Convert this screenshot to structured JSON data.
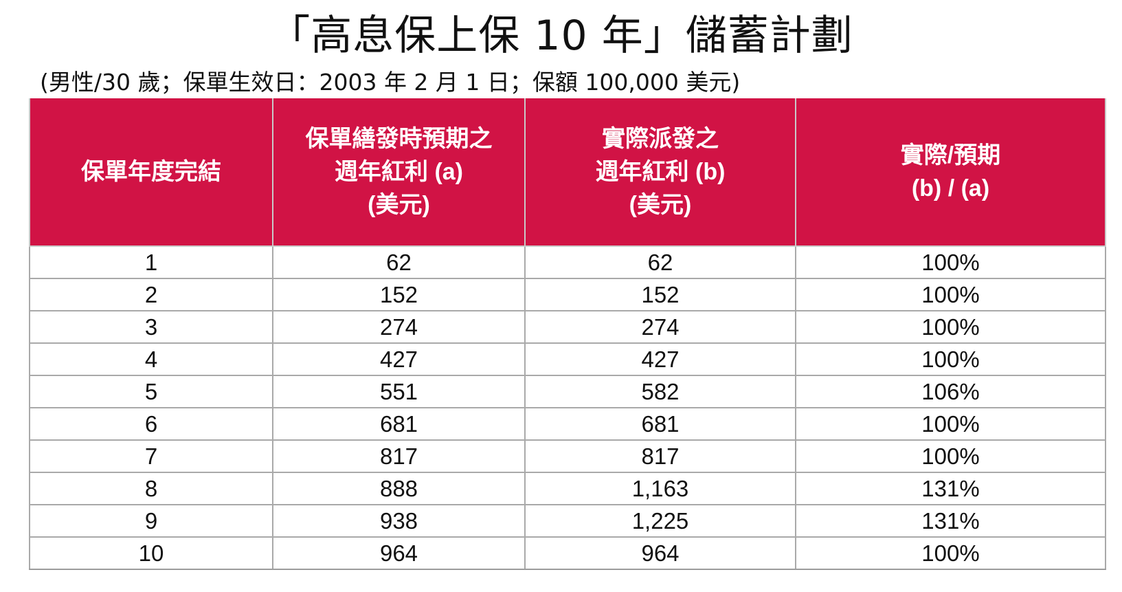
{
  "title": "「高息保上保 10 年」儲蓄計劃",
  "subtitle": "(男性/30 歲；保單生效日：2003 年 2 月 1 日；保額 100,000 美元)",
  "colors": {
    "header_bg": "#d11345",
    "header_text": "#ffffff",
    "grid": "#a9a9a9"
  },
  "table": {
    "headers": [
      [
        "保單年度完結"
      ],
      [
        "保單繕發時預期之",
        "週年紅利 (a)",
        "(美元)"
      ],
      [
        "實際派發之",
        "週年紅利 (b)",
        "(美元)"
      ],
      [
        "實際/預期",
        "(b) / (a)"
      ]
    ],
    "rows": [
      [
        "1",
        "62",
        "62",
        "100%"
      ],
      [
        "2",
        "152",
        "152",
        "100%"
      ],
      [
        "3",
        "274",
        "274",
        "100%"
      ],
      [
        "4",
        "427",
        "427",
        "100%"
      ],
      [
        "5",
        "551",
        "582",
        "106%"
      ],
      [
        "6",
        "681",
        "681",
        "100%"
      ],
      [
        "7",
        "817",
        "817",
        "100%"
      ],
      [
        "8",
        "888",
        "1,163",
        "131%"
      ],
      [
        "9",
        "938",
        "1,225",
        "131%"
      ],
      [
        "10",
        "964",
        "964",
        "100%"
      ]
    ]
  }
}
